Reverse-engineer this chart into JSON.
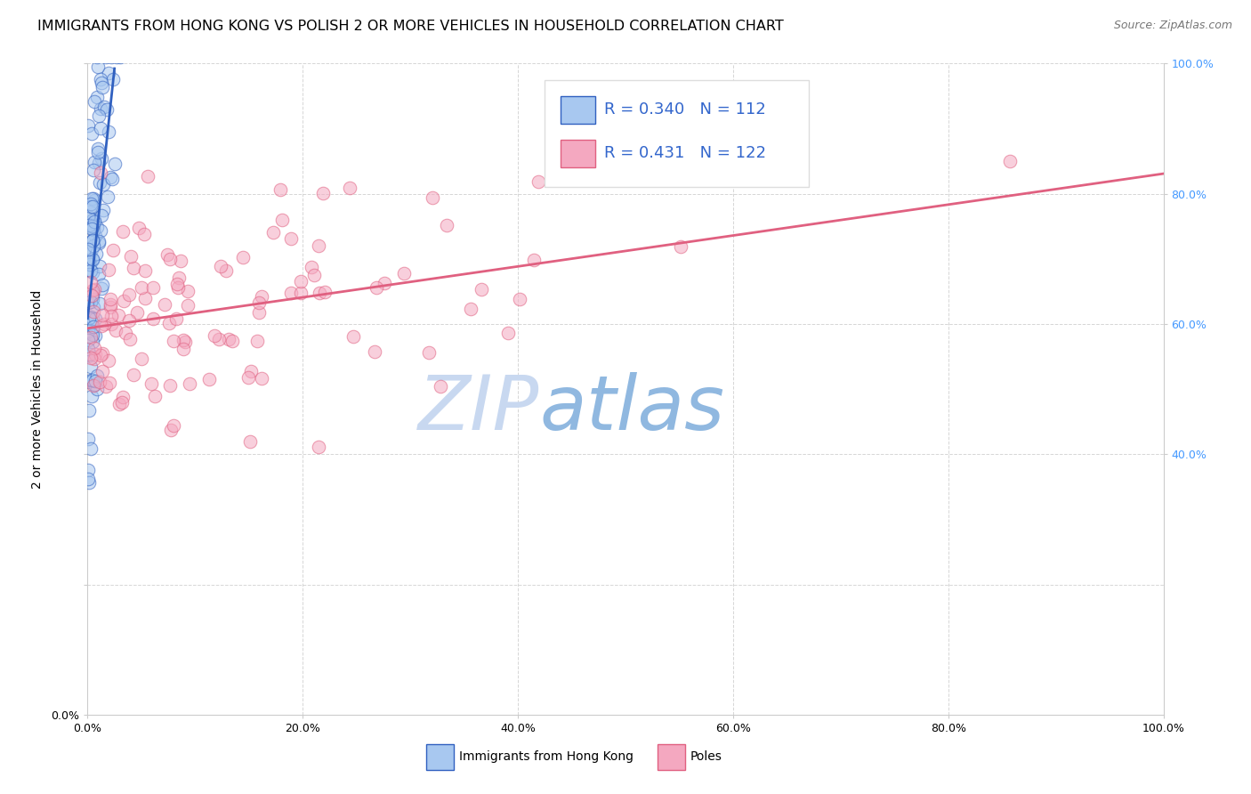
{
  "title": "IMMIGRANTS FROM HONG KONG VS POLISH 2 OR MORE VEHICLES IN HOUSEHOLD CORRELATION CHART",
  "source_text": "Source: ZipAtlas.com",
  "ylabel": "2 or more Vehicles in Household",
  "hk_R": 0.34,
  "hk_N": 112,
  "poles_R": 0.431,
  "poles_N": 122,
  "hk_color": "#A8C8F0",
  "poles_color": "#F4A8C0",
  "hk_line_color": "#3060C0",
  "poles_line_color": "#E06080",
  "right_tick_color": "#4499FF",
  "legend_text_color": "#3366CC",
  "watermark_zip_color": "#C8D8F0",
  "watermark_atlas_color": "#90B8E0",
  "background_color": "#FFFFFF",
  "grid_color": "#CCCCCC",
  "title_fontsize": 11.5,
  "source_fontsize": 9,
  "axis_label_fontsize": 10,
  "tick_fontsize": 9,
  "legend_fontsize": 13
}
